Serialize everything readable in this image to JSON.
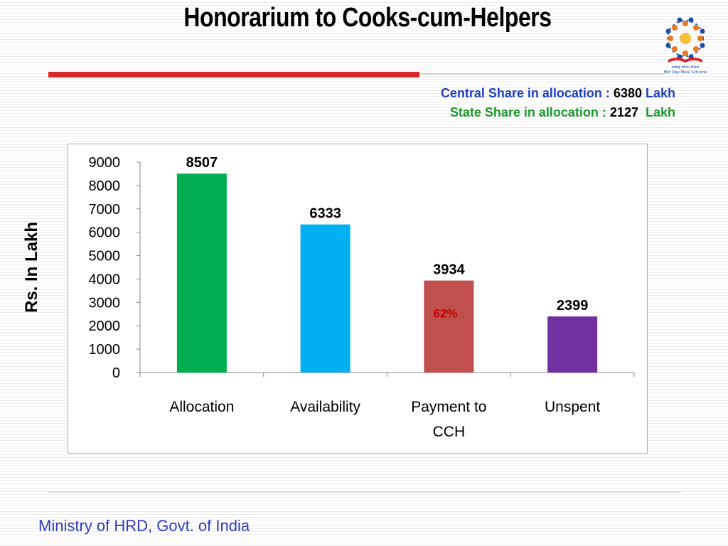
{
  "title": "Honorarium to Cooks-cum-Helpers",
  "shares": {
    "central_label": "Central Share in allocation : ",
    "central_value": "6380",
    "central_unit": "Lakh",
    "state_label": "State Share in allocation : ",
    "state_value": "2127",
    "state_unit": "Lakh"
  },
  "logo": {
    "icon": "mid-day-meal-scheme-logo",
    "caption_hindi": "मध्याह्न भोजन योजना",
    "caption": "Mid Day Meal Scheme"
  },
  "footer": "Ministry of HRD, Govt. of India",
  "colors": {
    "accent_red": "#d9262b",
    "footer_blue": "#2e3dbf"
  },
  "chart_data": {
    "type": "bar",
    "ylabel": "Rs. In Lakh",
    "xlabel": "",
    "ylim": [
      0,
      9000
    ],
    "yticks": [
      0,
      1000,
      2000,
      3000,
      4000,
      5000,
      6000,
      7000,
      8000,
      9000
    ],
    "grid": false,
    "categories": [
      "Allocation",
      "Availability",
      "Payment to CCH",
      "Unspent"
    ],
    "category_lines": [
      [
        "Allocation"
      ],
      [
        "Availability"
      ],
      [
        "Payment to",
        "CCH"
      ],
      [
        "Unspent"
      ]
    ],
    "values": [
      8507,
      6333,
      3934,
      2399
    ],
    "data_labels": [
      "8507",
      "6333",
      "3934",
      "2399"
    ],
    "bar_colors": [
      "#00b050",
      "#00b0f0",
      "#c0504d",
      "#7030a0"
    ],
    "annotations": [
      {
        "category": "Payment to CCH",
        "text": "62%",
        "color": "#c00000"
      }
    ]
  }
}
